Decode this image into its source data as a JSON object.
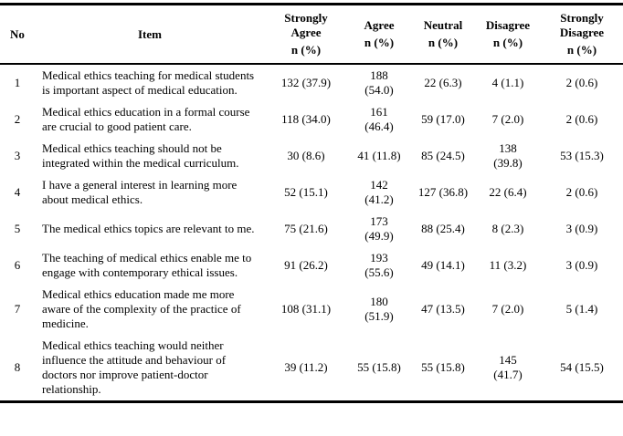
{
  "table": {
    "columns": [
      {
        "label": "No",
        "sub": ""
      },
      {
        "label": "Item",
        "sub": ""
      },
      {
        "label": "Strongly\nAgree",
        "sub": "n (%)"
      },
      {
        "label": "Agree",
        "sub": "n (%)"
      },
      {
        "label": "Neutral",
        "sub": "n (%)"
      },
      {
        "label": "Disagree",
        "sub": "n (%)"
      },
      {
        "label": "Strongly\nDisagree",
        "sub": "n (%)"
      }
    ],
    "rows": [
      {
        "no": "1",
        "item": "Medical ethics teaching for medical students is important aspect of medical education.",
        "strongly_agree": "132 (37.9)",
        "agree": "188\n(54.0)",
        "neutral": "22 (6.3)",
        "disagree": "4 (1.1)",
        "strongly_disagree": "2 (0.6)"
      },
      {
        "no": "2",
        "item": "Medical ethics education in a formal course are crucial to good patient care.",
        "strongly_agree": "118 (34.0)",
        "agree": "161\n(46.4)",
        "neutral": "59 (17.0)",
        "disagree": "7 (2.0)",
        "strongly_disagree": "2 (0.6)"
      },
      {
        "no": "3",
        "item": "Medical ethics teaching should not be integrated within the medical curriculum.",
        "strongly_agree": "30 (8.6)",
        "agree": "41 (11.8)",
        "neutral": "85 (24.5)",
        "disagree": "138\n(39.8)",
        "strongly_disagree": "53 (15.3)"
      },
      {
        "no": "4",
        "item": "I have a general interest in learning more about medical ethics.",
        "strongly_agree": "52 (15.1)",
        "agree": "142\n(41.2)",
        "neutral": "127 (36.8)",
        "disagree": "22 (6.4)",
        "strongly_disagree": "2 (0.6)"
      },
      {
        "no": "5",
        "item": "The medical ethics topics are relevant to me.",
        "strongly_agree": "75 (21.6)",
        "agree": "173\n(49.9)",
        "neutral": "88 (25.4)",
        "disagree": "8 (2.3)",
        "strongly_disagree": "3 (0.9)"
      },
      {
        "no": "6",
        "item": "The teaching of medical ethics enable me to engage with contemporary ethical issues.",
        "strongly_agree": "91 (26.2)",
        "agree": "193\n(55.6)",
        "neutral": "49 (14.1)",
        "disagree": "11 (3.2)",
        "strongly_disagree": "3 (0.9)"
      },
      {
        "no": "7",
        "item": "Medical ethics education made me more aware of the complexity of the practice of medicine.",
        "strongly_agree": "108 (31.1)",
        "agree": "180\n(51.9)",
        "neutral": "47 (13.5)",
        "disagree": "7 (2.0)",
        "strongly_disagree": "5 (1.4)"
      },
      {
        "no": "8",
        "item": "Medical ethics teaching would neither influence the attitude and behaviour of doctors nor improve patient-doctor relationship.",
        "strongly_agree": "39 (11.2)",
        "agree": "55 (15.8)",
        "neutral": "55 (15.8)",
        "disagree": "145\n(41.7)",
        "strongly_disagree": "54 (15.5)"
      }
    ]
  }
}
